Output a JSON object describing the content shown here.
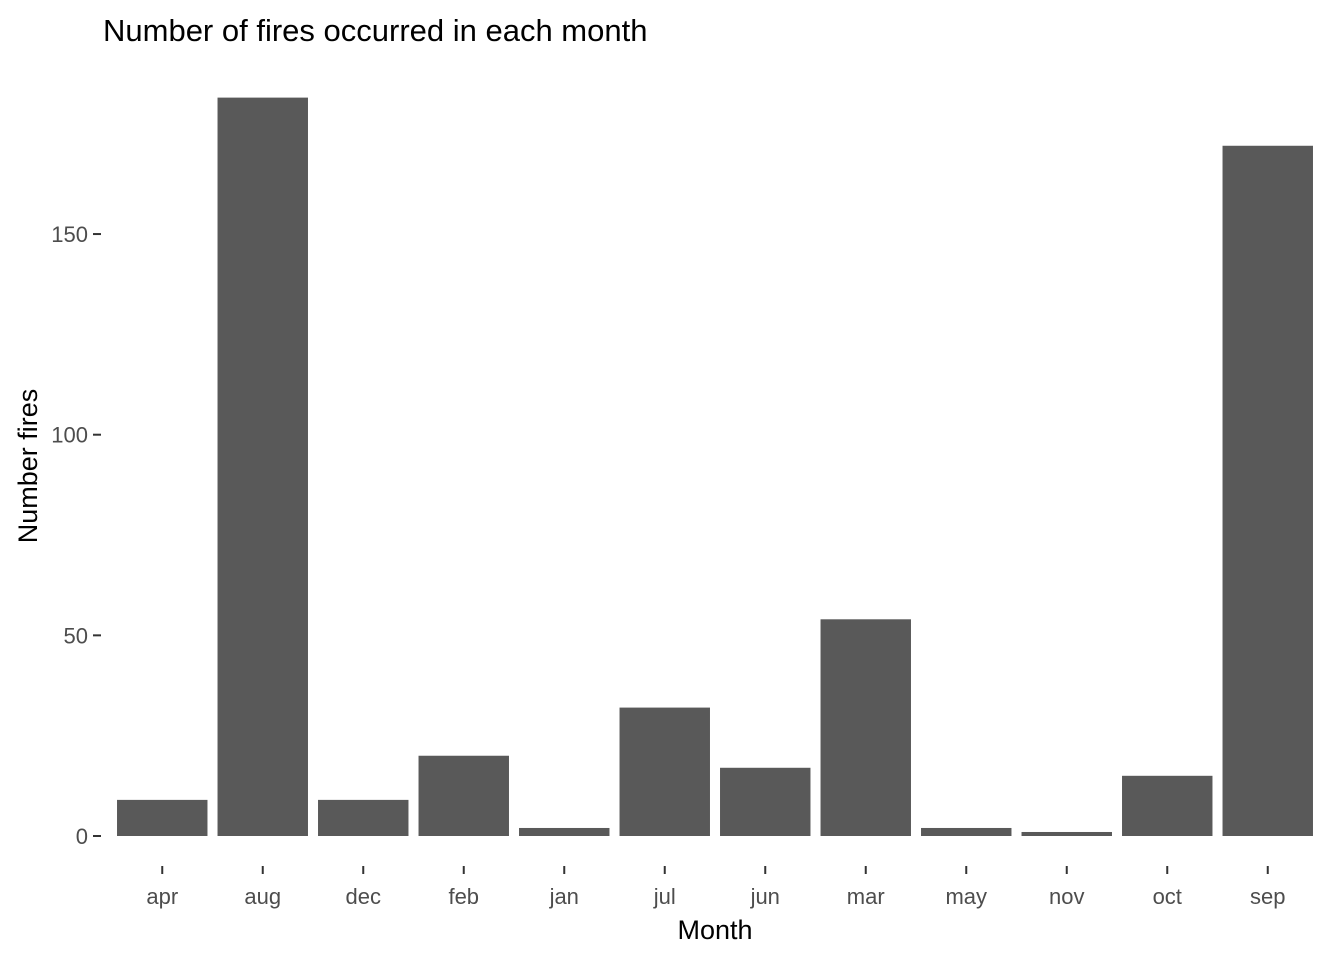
{
  "chart_data": {
    "type": "bar",
    "title": "Number of fires occurred in each month",
    "xlabel": "Month",
    "ylabel": "Number fires",
    "categories": [
      "apr",
      "aug",
      "dec",
      "feb",
      "jan",
      "jul",
      "jun",
      "mar",
      "may",
      "nov",
      "oct",
      "sep"
    ],
    "values": [
      9,
      184,
      9,
      20,
      2,
      32,
      17,
      54,
      2,
      1,
      15,
      172
    ],
    "ylim": [
      0,
      184
    ],
    "yticks": [
      0,
      50,
      100,
      150
    ],
    "grid": false,
    "legend": "none",
    "bar_color": "#595959"
  }
}
